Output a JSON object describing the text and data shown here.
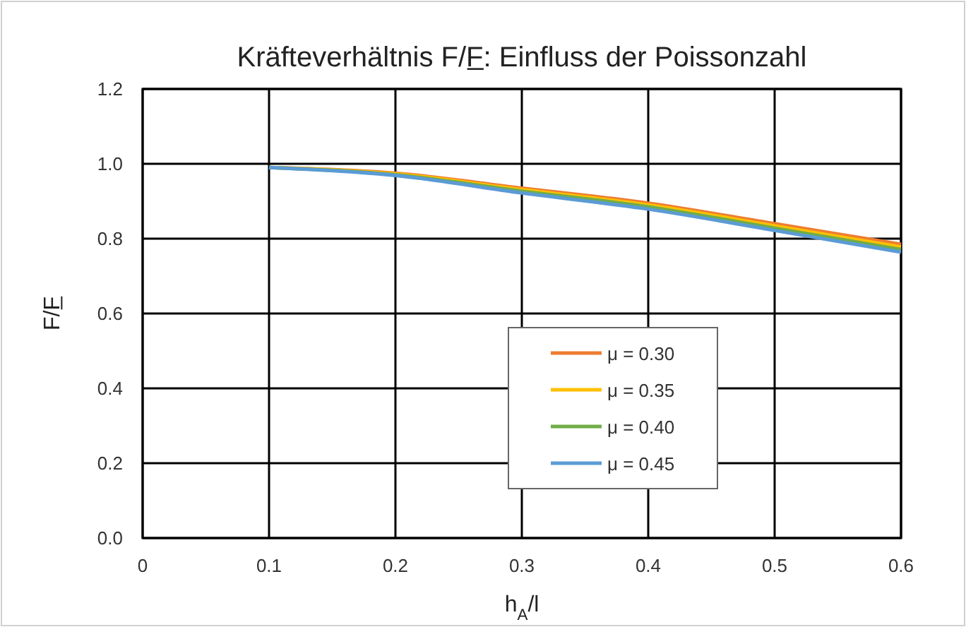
{
  "chart_data": {
    "type": "line",
    "title": "Kräfteverhältnis F/F̲: Einfluss der Poissonzahl",
    "xlabel": "h$_{A}$/l",
    "ylabel": "F/F̲",
    "x": [
      0.1,
      0.2,
      0.3,
      0.4,
      0.5,
      0.6
    ],
    "series": [
      {
        "name": "μ = 0.30",
        "color": "#ed7d31",
        "values": [
          0.99,
          0.975,
          0.935,
          0.895,
          0.84,
          0.785
        ]
      },
      {
        "name": "μ = 0.35",
        "color": "#ffc000",
        "values": [
          0.99,
          0.973,
          0.931,
          0.89,
          0.834,
          0.778
        ]
      },
      {
        "name": "μ = 0.40",
        "color": "#70ad47",
        "values": [
          0.99,
          0.971,
          0.927,
          0.885,
          0.828,
          0.771
        ]
      },
      {
        "name": "μ = 0.45",
        "color": "#5b9bd5",
        "values": [
          0.99,
          0.969,
          0.922,
          0.879,
          0.822,
          0.764
        ]
      }
    ],
    "xlim": [
      0,
      0.6
    ],
    "xticks": [
      0,
      0.1,
      0.2,
      0.3,
      0.4,
      0.5,
      0.6
    ],
    "ylim": [
      0,
      1.2
    ],
    "yticks": [
      {
        "value": 0,
        "label": "0.0"
      },
      0.2,
      0.4,
      0.6,
      0.8,
      {
        "value": 1,
        "label": "1.0"
      },
      1.2
    ],
    "grid": true,
    "legend": "bottom right",
    "marker": "none",
    "line_style": "solid"
  }
}
